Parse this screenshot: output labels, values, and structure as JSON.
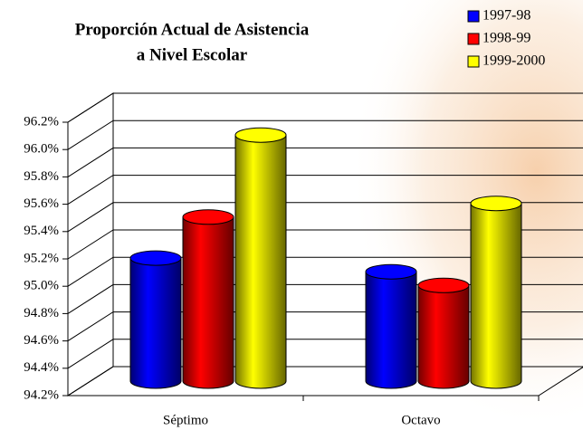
{
  "chart_data": {
    "type": "bar3d",
    "title": [
      "Proporción Actual de Asistencia",
      "a Nivel Escolar"
    ],
    "categories": [
      "Séptimo",
      "Octavo"
    ],
    "series": [
      {
        "name": "1997-98",
        "color": "#0000ff",
        "values": [
          95.1,
          95.0
        ]
      },
      {
        "name": "1998-99",
        "color": "#ff0000",
        "values": [
          95.4,
          94.9
        ]
      },
      {
        "name": "1999-2000",
        "color": "#ffff00",
        "values": [
          96.0,
          95.5
        ]
      }
    ],
    "ylim": [
      94.2,
      96.2
    ],
    "yticks": [
      {
        "value": 94.2,
        "label": "94.2%"
      },
      {
        "value": 94.4,
        "label": "94.4%"
      },
      {
        "value": 94.6,
        "label": "94.6%"
      },
      {
        "value": 94.8,
        "label": "94.8%"
      },
      {
        "value": 95.0,
        "label": "95.0%"
      },
      {
        "value": 95.2,
        "label": "95.2%"
      },
      {
        "value": 95.4,
        "label": "95.4%"
      },
      {
        "value": 95.6,
        "label": "95.6%"
      },
      {
        "value": 95.8,
        "label": "95.8%"
      },
      {
        "value": 96.0,
        "label": "96.0%"
      },
      {
        "value": 96.2,
        "label": "96.2%"
      }
    ],
    "grid": true,
    "legend": "top-right"
  }
}
